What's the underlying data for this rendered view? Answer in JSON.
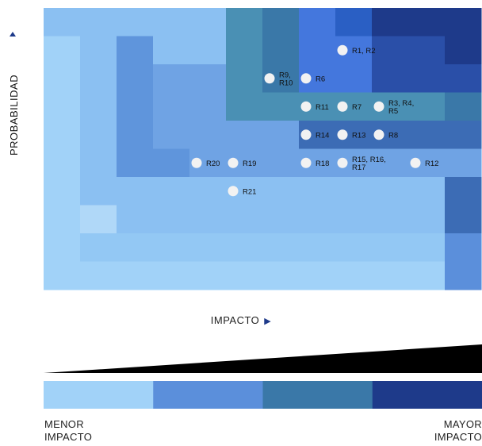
{
  "chart_data": {
    "type": "heatmap",
    "ylabel": "PROBABILIDAD",
    "xlabel": "IMPACTO",
    "legend": {
      "min_label_lines": [
        "MENOR",
        "IMPACTO"
      ],
      "max_label_lines": [
        "MAYOR",
        "IMPACTO"
      ],
      "colors": [
        "#a1d2f8",
        "#5b8fdb",
        "#3a78a8",
        "#1e3a8a"
      ]
    },
    "grid": {
      "cols": 12,
      "rows": 10
    },
    "cells": [
      [
        "#8bc0f2",
        "#8bc0f2",
        "#8bc0f2",
        "#8bc0f2",
        "#8bc0f2",
        "#4a90b4",
        "#3a78a8",
        "#4477dd",
        "#2a5fc4",
        "#1e3a8a",
        "#1e3a8a",
        "#1e3a8a"
      ],
      [
        "#a1d2f8",
        "#8bc0f2",
        "#5f95dc",
        "#8bc0f2",
        "#8bc0f2",
        "#4a90b4",
        "#3a78a8",
        "#4477dd",
        "#4477dd",
        "#2a4fa8",
        "#2a4fa8",
        "#1e3a8a"
      ],
      [
        "#a1d2f8",
        "#8bc0f2",
        "#5f95dc",
        "#6fa3e4",
        "#6fa3e4",
        "#4a90b4",
        "#3a78a8",
        "#4477dd",
        "#4477dd",
        "#2a4fa8",
        "#2a4fa8",
        "#2a4fa8"
      ],
      [
        "#a1d2f8",
        "#8bc0f2",
        "#5f95dc",
        "#6fa3e4",
        "#6fa3e4",
        "#4a90b4",
        "#4a90b4",
        "#4a90b4",
        "#4a90b4",
        "#4a90b4",
        "#4a90b4",
        "#3a78a8"
      ],
      [
        "#a1d2f8",
        "#8bc0f2",
        "#5f95dc",
        "#6fa3e4",
        "#6fa3e4",
        "#6fa3e4",
        "#6fa3e4",
        "#3c6cb5",
        "#3c6cb5",
        "#3c6cb5",
        "#3c6cb5",
        "#3c6cb5"
      ],
      [
        "#a1d2f8",
        "#8bc0f2",
        "#5f95dc",
        "#5f95dc",
        "#6fa3e4",
        "#6fa3e4",
        "#6fa3e4",
        "#6fa3e4",
        "#6fa3e4",
        "#6fa3e4",
        "#6fa3e4",
        "#6fa3e4"
      ],
      [
        "#a1d2f8",
        "#8bc0f2",
        "#8bc0f2",
        "#8bc0f2",
        "#8bc0f2",
        "#8bc0f2",
        "#8bc0f2",
        "#8bc0f2",
        "#8bc0f2",
        "#8bc0f2",
        "#8bc0f2",
        "#3c6cb5"
      ],
      [
        "#a1d2f8",
        "#b0d8f8",
        "#8bc0f2",
        "#8bc0f2",
        "#8bc0f2",
        "#8bc0f2",
        "#8bc0f2",
        "#8bc0f2",
        "#8bc0f2",
        "#8bc0f2",
        "#8bc0f2",
        "#3c6cb5"
      ],
      [
        "#a1d2f8",
        "#93c8f4",
        "#93c8f4",
        "#93c8f4",
        "#93c8f4",
        "#93c8f4",
        "#93c8f4",
        "#93c8f4",
        "#93c8f4",
        "#93c8f4",
        "#93c8f4",
        "#5b8fdb"
      ],
      [
        "#a1d2f8",
        "#a1d2f8",
        "#a1d2f8",
        "#a1d2f8",
        "#a1d2f8",
        "#a1d2f8",
        "#a1d2f8",
        "#a1d2f8",
        "#a1d2f8",
        "#a1d2f8",
        "#a1d2f8",
        "#5b8fdb"
      ]
    ],
    "points": [
      {
        "lines": [
          "R1, R2"
        ],
        "col": 8,
        "row": 1.5
      },
      {
        "lines": [
          "R9,",
          "R10"
        ],
        "col": 6,
        "row": 2.5
      },
      {
        "lines": [
          "R6"
        ],
        "col": 7,
        "row": 2.5
      },
      {
        "lines": [
          "R11"
        ],
        "col": 7,
        "row": 3.5
      },
      {
        "lines": [
          "R7"
        ],
        "col": 8,
        "row": 3.5
      },
      {
        "lines": [
          "R3, R4,",
          "R5"
        ],
        "col": 9,
        "row": 3.5
      },
      {
        "lines": [
          "R14"
        ],
        "col": 7,
        "row": 4.5
      },
      {
        "lines": [
          "R13"
        ],
        "col": 8,
        "row": 4.5
      },
      {
        "lines": [
          "R8"
        ],
        "col": 9,
        "row": 4.5
      },
      {
        "lines": [
          "R20"
        ],
        "col": 4,
        "row": 5.5
      },
      {
        "lines": [
          "R19"
        ],
        "col": 5,
        "row": 5.5
      },
      {
        "lines": [
          "R18"
        ],
        "col": 7,
        "row": 5.5
      },
      {
        "lines": [
          "R15, R16,",
          "R17"
        ],
        "col": 8,
        "row": 5.5
      },
      {
        "lines": [
          "R12"
        ],
        "col": 10,
        "row": 5.5
      },
      {
        "lines": [
          "R21"
        ],
        "col": 5,
        "row": 6.5
      }
    ]
  }
}
